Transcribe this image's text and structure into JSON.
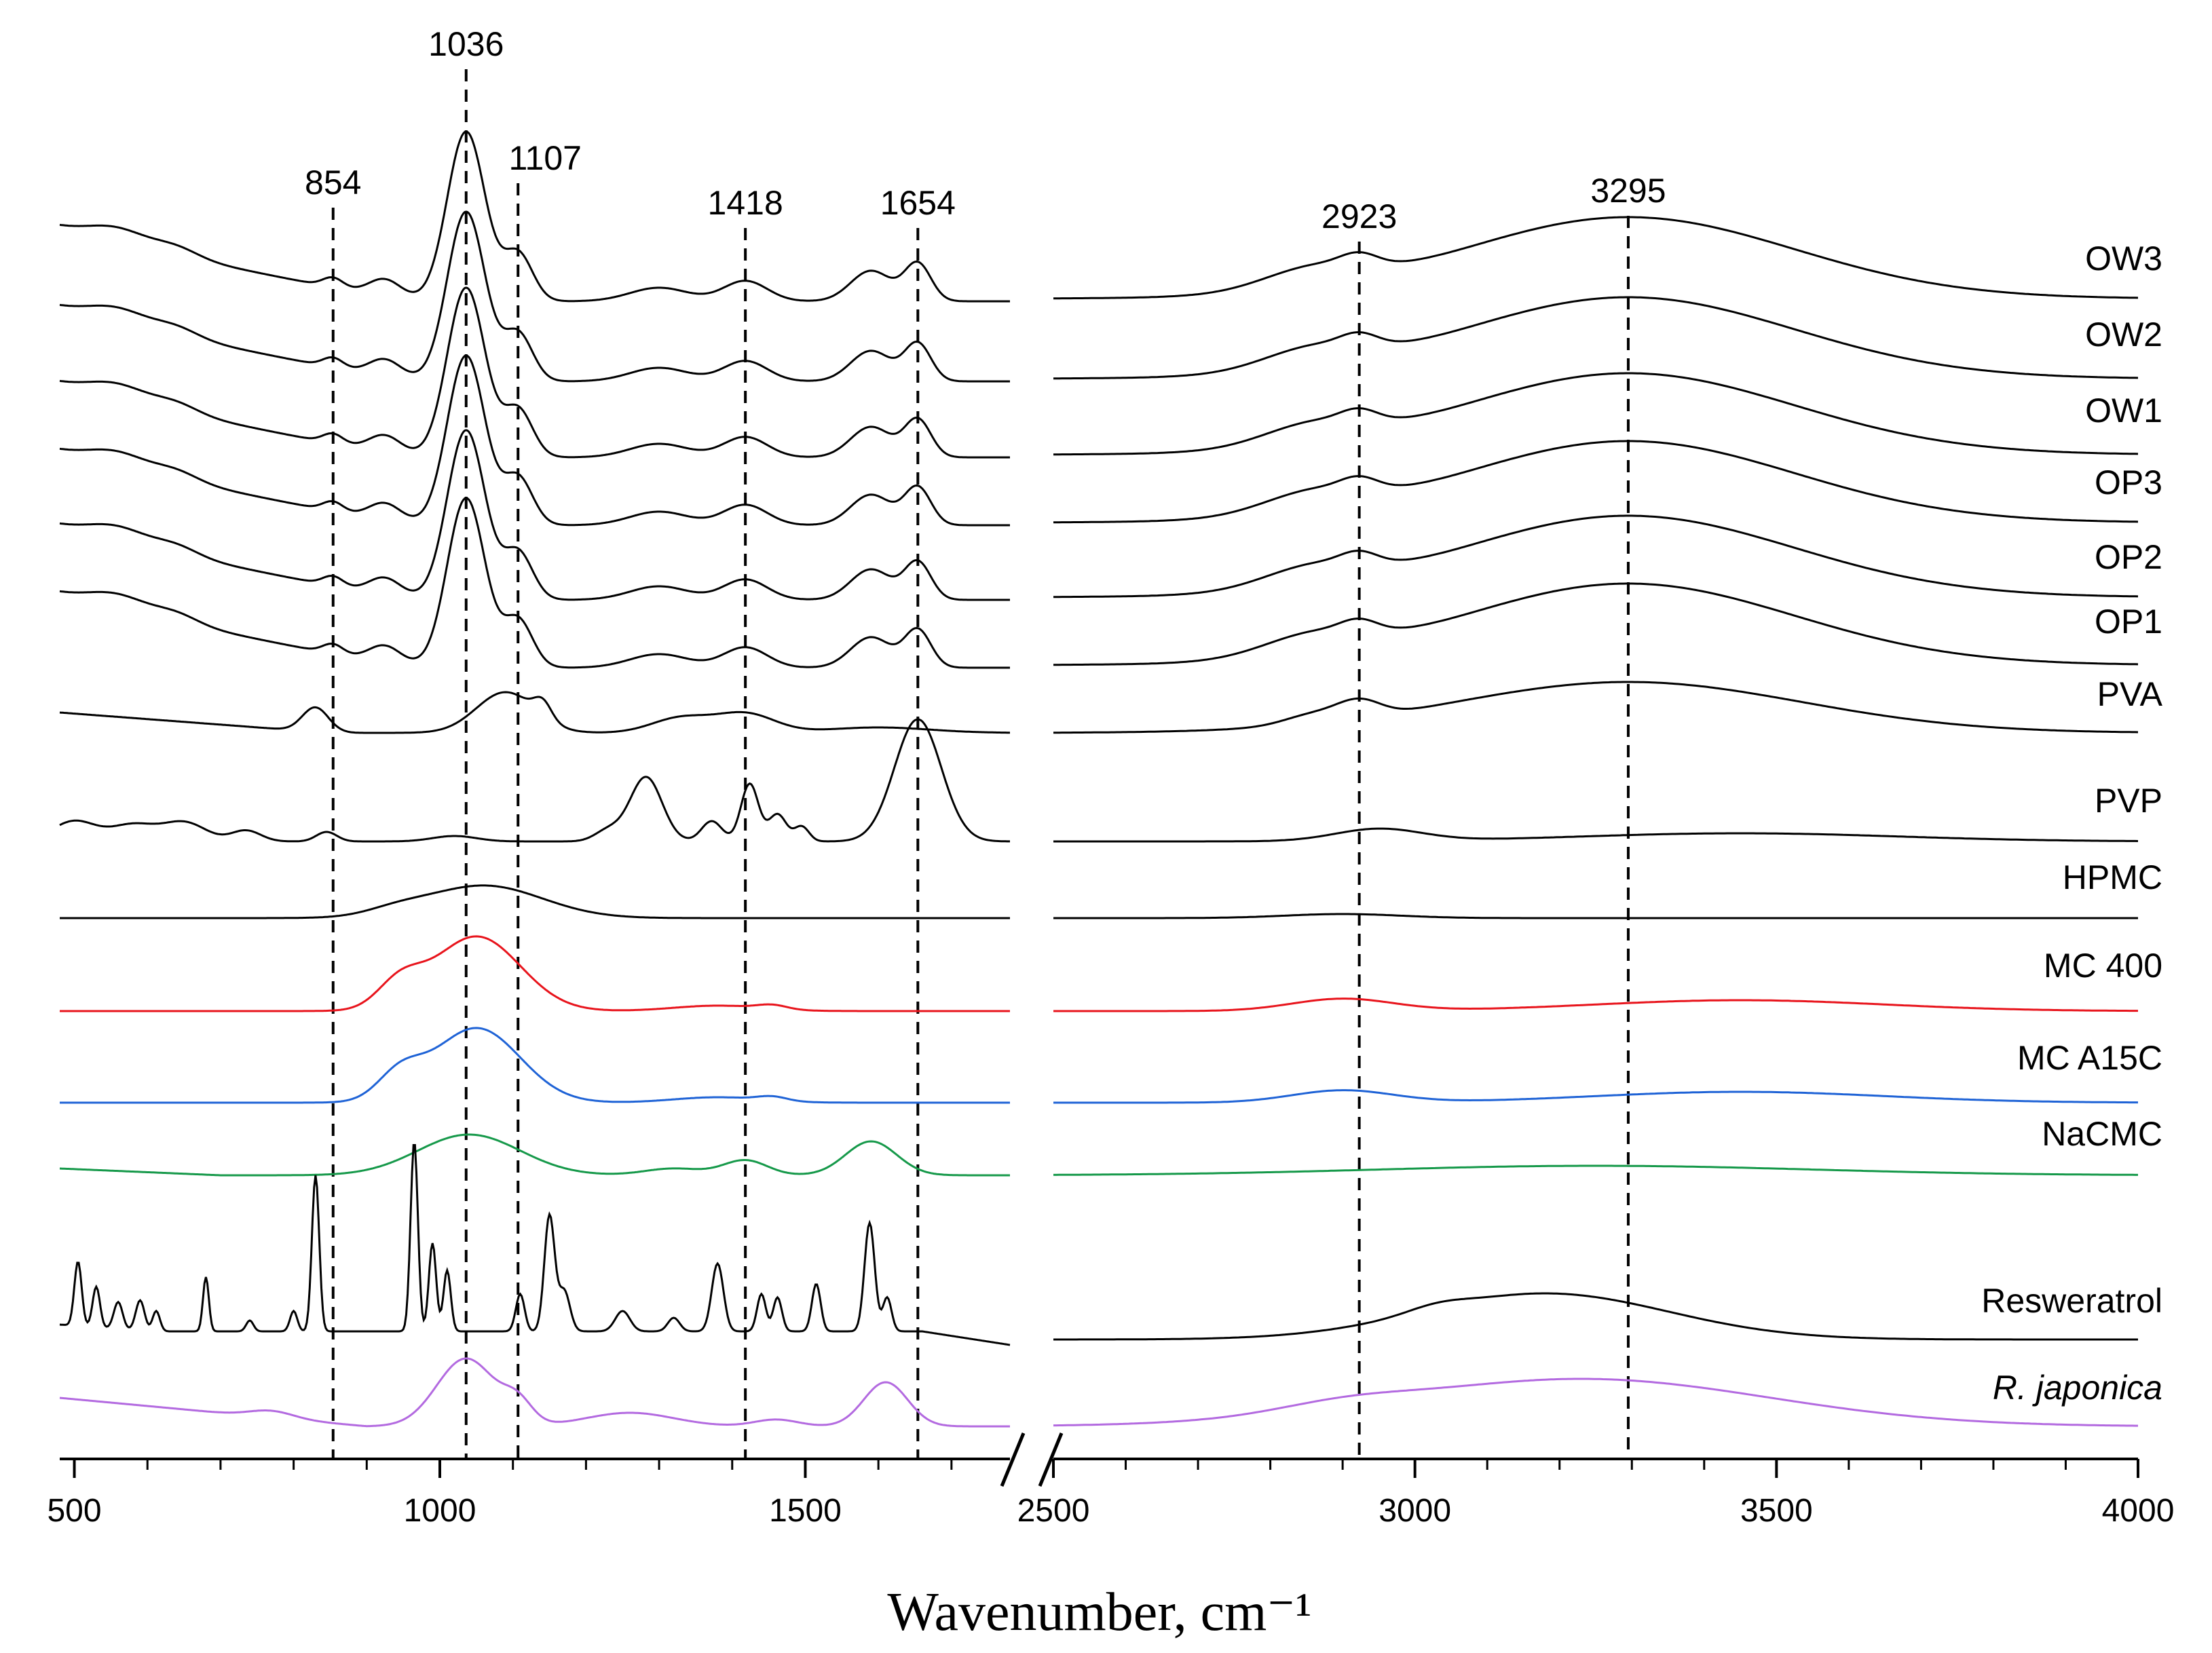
{
  "chart_data": {
    "type": "line",
    "title": "",
    "xlabel": "Wavenumber, cm⁻¹",
    "ylabel": "",
    "grid": false,
    "x_axis_break": [
      1780,
      2500
    ],
    "x_segments": [
      {
        "range": [
          480,
          1780
        ],
        "ticks": [
          500,
          1000,
          1500
        ]
      },
      {
        "range": [
          2500,
          4000
        ],
        "ticks": [
          2500,
          3000,
          3500,
          4000
        ]
      }
    ],
    "tick_labels": [
      "500",
      "1000",
      "1500",
      "2500",
      "3000",
      "3500",
      "4000"
    ],
    "peak_markers": [
      {
        "x": 854,
        "label": "854"
      },
      {
        "x": 1036,
        "label": "1036"
      },
      {
        "x": 1107,
        "label": "1107"
      },
      {
        "x": 1418,
        "label": "1418"
      },
      {
        "x": 1654,
        "label": "1654"
      },
      {
        "x": 2923,
        "label": "2923"
      },
      {
        "x": 3295,
        "label": "3295"
      }
    ],
    "series": [
      {
        "name": "OW3",
        "color": "#000000",
        "italic": false,
        "offset": 0,
        "kind": "composite"
      },
      {
        "name": "OW2",
        "color": "#000000",
        "italic": false,
        "offset": 1,
        "kind": "composite"
      },
      {
        "name": "OW1",
        "color": "#000000",
        "italic": false,
        "offset": 2,
        "kind": "composite"
      },
      {
        "name": "OP3",
        "color": "#000000",
        "italic": false,
        "offset": 3,
        "kind": "composite"
      },
      {
        "name": "OP2",
        "color": "#000000",
        "italic": false,
        "offset": 4,
        "kind": "composite"
      },
      {
        "name": "OP1",
        "color": "#000000",
        "italic": false,
        "offset": 5,
        "kind": "composite"
      },
      {
        "name": "PVA",
        "color": "#000000",
        "italic": false,
        "offset": 6,
        "kind": "pva"
      },
      {
        "name": "PVP",
        "color": "#000000",
        "italic": false,
        "offset": 7,
        "kind": "pvp"
      },
      {
        "name": "HPMC",
        "color": "#000000",
        "italic": false,
        "offset": 8,
        "kind": "hpmc"
      },
      {
        "name": "MC 400",
        "color": "#e8141c",
        "italic": false,
        "offset": 9,
        "kind": "mc"
      },
      {
        "name": "MC A15C",
        "color": "#1f63d6",
        "italic": false,
        "offset": 10,
        "kind": "mc"
      },
      {
        "name": "NaCMC",
        "color": "#16994a",
        "italic": false,
        "offset": 11,
        "kind": "nacmc"
      },
      {
        "name": "Resweratrol",
        "color": "#000000",
        "italic": false,
        "offset": 12,
        "kind": "resveratrol"
      },
      {
        "name": "R. japonica",
        "color": "#b36ae0",
        "italic": true,
        "offset": 13,
        "kind": "rjaponica"
      }
    ]
  }
}
